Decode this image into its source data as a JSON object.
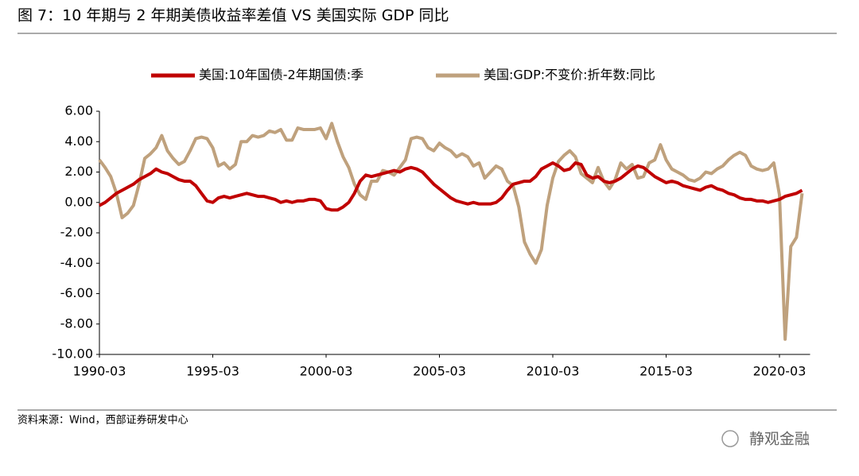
{
  "chart_data": {
    "type": "line",
    "title": "图 7：10 年期与 2 年期美债收益率差值 VS 美国实际 GDP 同比",
    "source": "资料来源：Wind，西部证券研发中心",
    "watermark": "静观金融",
    "categories": [
      "1990-03",
      null,
      null,
      null,
      null,
      null,
      null,
      null,
      null,
      null,
      null,
      null,
      null,
      null,
      null,
      null,
      null,
      null,
      null,
      null,
      "1995-03",
      null,
      null,
      null,
      null,
      null,
      null,
      null,
      null,
      null,
      null,
      null,
      null,
      null,
      null,
      null,
      null,
      null,
      null,
      null,
      "2000-03",
      null,
      null,
      null,
      null,
      null,
      null,
      null,
      null,
      null,
      null,
      null,
      null,
      null,
      null,
      null,
      null,
      null,
      null,
      null,
      "2005-03",
      null,
      null,
      null,
      null,
      null,
      null,
      null,
      null,
      null,
      null,
      null,
      null,
      null,
      null,
      null,
      null,
      null,
      null,
      null,
      "2010-03",
      null,
      null,
      null,
      null,
      null,
      null,
      null,
      null,
      null,
      null,
      null,
      null,
      null,
      null,
      null,
      null,
      null,
      null,
      null,
      "2015-03",
      null,
      null,
      null,
      null,
      null,
      null,
      null,
      null,
      null,
      null,
      null,
      null,
      null,
      null,
      null,
      null,
      null,
      null,
      null,
      "2020-03",
      null,
      null,
      null,
      null
    ],
    "series": [
      {
        "name": "美国:10年国债-2年期国债:季",
        "color": "#c00000",
        "values": [
          -0.2,
          0.0,
          0.3,
          0.6,
          0.8,
          1.0,
          1.2,
          1.5,
          1.7,
          1.9,
          2.2,
          2.0,
          1.9,
          1.7,
          1.5,
          1.4,
          1.4,
          1.1,
          0.6,
          0.1,
          0.0,
          0.3,
          0.4,
          0.3,
          0.4,
          0.5,
          0.6,
          0.5,
          0.4,
          0.4,
          0.3,
          0.2,
          0.0,
          0.1,
          0.0,
          0.1,
          0.1,
          0.2,
          0.2,
          0.1,
          -0.4,
          -0.5,
          -0.5,
          -0.3,
          0.0,
          0.6,
          1.4,
          1.8,
          1.7,
          1.8,
          1.9,
          2.0,
          2.1,
          2.0,
          2.2,
          2.3,
          2.2,
          2.0,
          1.6,
          1.2,
          0.9,
          0.6,
          0.3,
          0.1,
          0.0,
          -0.1,
          0.0,
          -0.1,
          -0.1,
          -0.1,
          0.0,
          0.3,
          0.8,
          1.2,
          1.3,
          1.4,
          1.4,
          1.7,
          2.2,
          2.4,
          2.6,
          2.4,
          2.1,
          2.2,
          2.6,
          2.5,
          1.8,
          1.6,
          1.7,
          1.4,
          1.3,
          1.4,
          1.6,
          1.9,
          2.2,
          2.4,
          2.3,
          2.0,
          1.7,
          1.5,
          1.3,
          1.4,
          1.3,
          1.1,
          1.0,
          0.9,
          0.8,
          1.0,
          1.1,
          0.9,
          0.8,
          0.6,
          0.5,
          0.3,
          0.2,
          0.2,
          0.1,
          0.1,
          0.0,
          0.1,
          0.2,
          0.4,
          0.5,
          0.6,
          0.8
        ]
      },
      {
        "name": "美国:GDP:不变价:折年数:同比",
        "color": "#bfa17d",
        "values": [
          2.8,
          2.3,
          1.7,
          0.6,
          -1.0,
          -0.7,
          -0.2,
          1.2,
          2.9,
          3.2,
          3.6,
          4.4,
          3.4,
          2.9,
          2.5,
          2.7,
          3.4,
          4.2,
          4.3,
          4.2,
          3.6,
          2.4,
          2.6,
          2.2,
          2.5,
          4.0,
          4.0,
          4.4,
          4.3,
          4.4,
          4.7,
          4.6,
          4.8,
          4.1,
          4.1,
          4.9,
          4.8,
          4.8,
          4.8,
          4.9,
          4.2,
          5.2,
          4.0,
          3.0,
          2.3,
          1.2,
          0.5,
          0.2,
          1.4,
          1.4,
          2.1,
          2.0,
          1.8,
          2.3,
          2.8,
          4.2,
          4.3,
          4.2,
          3.6,
          3.4,
          3.9,
          3.6,
          3.4,
          3.0,
          3.2,
          3.0,
          2.4,
          2.6,
          1.6,
          2.0,
          2.4,
          2.2,
          1.4,
          1.1,
          -0.3,
          -2.6,
          -3.4,
          -4.0,
          -3.1,
          -0.2,
          1.6,
          2.7,
          3.1,
          3.4,
          3.0,
          1.9,
          1.6,
          1.3,
          2.3,
          1.4,
          0.9,
          1.5,
          2.6,
          2.2,
          2.5,
          1.6,
          1.7,
          2.6,
          2.8,
          3.8,
          2.8,
          2.2,
          2.0,
          1.8,
          1.5,
          1.4,
          1.6,
          2.0,
          1.9,
          2.2,
          2.4,
          2.8,
          3.1,
          3.3,
          3.1,
          2.4,
          2.2,
          2.1,
          2.2,
          2.6,
          0.5,
          -9.0,
          -2.9,
          -2.3,
          0.6
        ]
      }
    ],
    "ylim": [
      -10,
      6
    ],
    "yticks": [
      {
        "value": 6,
        "label": "6.00"
      },
      {
        "value": 4,
        "label": "4.00"
      },
      {
        "value": 2,
        "label": "2.00"
      },
      {
        "value": 0,
        "label": "0.00"
      },
      {
        "value": -2,
        "label": "-2.00"
      },
      {
        "value": -4,
        "label": "-4.00"
      },
      {
        "value": -6,
        "label": "-6.00"
      },
      {
        "value": -8,
        "label": "-8.00"
      },
      {
        "value": -10,
        "label": "-10.00"
      }
    ],
    "legend": "top",
    "grid": false
  }
}
